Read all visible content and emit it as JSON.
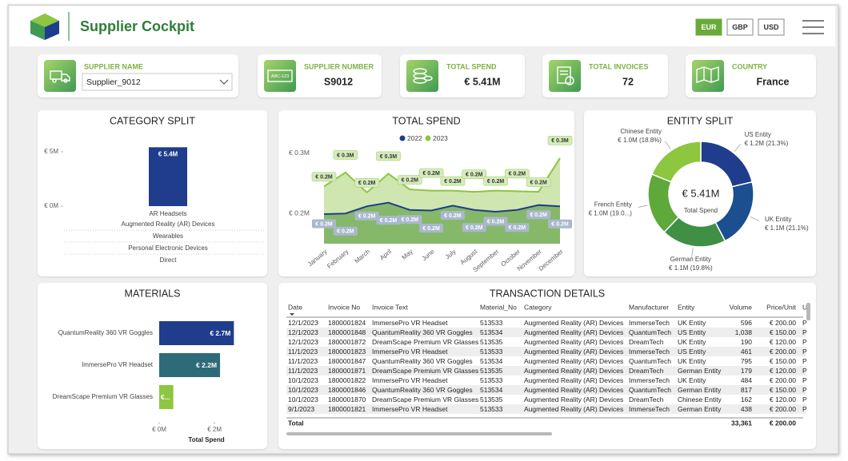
{
  "header": {
    "title": "Supplier Cockpit",
    "currencies": [
      "EUR",
      "GBP",
      "USD"
    ],
    "selected_currency": "EUR"
  },
  "kpis": [
    {
      "label": "SUPPLIER NAME",
      "value": "Supplier_9012"
    },
    {
      "label": "SUPPLIER NUMBER",
      "value": "S9012",
      "badge": "ABC-123"
    },
    {
      "label": "TOTAL SPEND",
      "value": "€ 5.41M"
    },
    {
      "label": "TOTAL INVOICES",
      "value": "72"
    },
    {
      "label": "COUNTRY",
      "value": "France"
    }
  ],
  "chart_data": [
    {
      "type": "bar",
      "title": "CATEGORY SPLIT",
      "categories": [
        "AR Headsets"
      ],
      "category_hierarchy": [
        "Augmented Reality (AR) Devices",
        "Wearables",
        "Personal Electronic Devices",
        "Direct"
      ],
      "values": [
        5410000
      ],
      "value_labels": [
        "€ 5.4M"
      ],
      "color": "#1f3d8c",
      "ylim": [
        0,
        5800000
      ],
      "yticks": [
        {
          "value": 0,
          "label": "€ 0M"
        },
        {
          "value": 5000000,
          "label": "€ 5M"
        }
      ]
    },
    {
      "type": "line",
      "title": "TOTAL SPEND",
      "categories": [
        "January",
        "February",
        "March",
        "April",
        "May",
        "June",
        "July",
        "August",
        "September",
        "October",
        "November",
        "December"
      ],
      "series": [
        {
          "name": "2022",
          "color": "#1f3d8c",
          "area_color": "#86b86a",
          "values": [
            199000,
            200000,
            212000,
            218000,
            206000,
            205000,
            213000,
            206000,
            203000,
            206000,
            214000,
            212000
          ],
          "value_labels": [
            "€ 0.2M",
            "€ 0.2M",
            "€ 0.2M",
            "€ 0.2M",
            "€ 0.2M",
            "€ 0.2M",
            "€ 0.2M",
            "€ 0.2M",
            "€ 0.2M",
            "€ 0.2M",
            "€ 0.2M",
            "€ 0.2M"
          ]
        },
        {
          "name": "2023",
          "color": "#8dc63f",
          "area_color": "#cfe6b1",
          "values": [
            245000,
            268000,
            235000,
            266000,
            240000,
            238000,
            238000,
            236000,
            238000,
            237000,
            236000,
            292000
          ],
          "value_labels": [
            "€ 0.2M",
            "€ 0.3M",
            "€ 0.2M",
            "€ 0.3M",
            "€ 0.2M",
            "€ 0.2M",
            "€ 0.2M",
            "€ 0.2M",
            "€ 0.2M",
            "€ 0.2M",
            "€ 0.2M",
            "€ 0.3M"
          ]
        }
      ],
      "ylim": [
        150000,
        305000
      ],
      "yticks": [
        {
          "value": 200000,
          "label": "€ 0.2M"
        },
        {
          "value": 300000,
          "label": "€ 0.3M"
        }
      ],
      "legend": "top"
    },
    {
      "type": "donut",
      "title": "ENTITY SPLIT",
      "categories": [
        "US Entity",
        "UK Entity",
        "German Entity",
        "French Entity",
        "Chinese Entity"
      ],
      "values": [
        1152000,
        1141000,
        1071000,
        1028000,
        1017000
      ],
      "value_labels": [
        "€ 1.2M (21.3%)",
        "€ 1.1M (21.1%)",
        "€ 1.1M (19.8%)",
        "€ 1.0M (19.0...)",
        "€ 1.0M (18.8%)"
      ],
      "colors": [
        "#1f3d8c",
        "#1b4f8f",
        "#3f8f45",
        "#5fa83a",
        "#8dc63f"
      ],
      "center_label": "€ 5.41M",
      "center_caption": "Total Spend"
    },
    {
      "type": "hbar",
      "title": "MATERIALS",
      "categories": [
        "QuantumReality 360 VR Goggles",
        "ImmersePro VR Headset",
        "DreamScape Premium VR Glasses"
      ],
      "values": [
        2700000,
        2200000,
        510000
      ],
      "value_labels": [
        "€ 2.7M",
        "€ 2.2M",
        "€..."
      ],
      "colors": [
        "#1f3d8c",
        "#2d6b78",
        "#8dc63f"
      ],
      "xlim": [
        0,
        3500000
      ],
      "xticks": [
        {
          "value": 0,
          "label": "€ 0M"
        },
        {
          "value": 2000000,
          "label": "€ 2M"
        }
      ],
      "xlabel": "Total Spend"
    }
  ],
  "table": {
    "title": "TRANSACTION DETAILS",
    "columns": [
      "Date",
      "Invoice No",
      "Invoice Text",
      "Material_No",
      "Category",
      "Manufacturer",
      "Entity",
      "Volume",
      "Price/Unit",
      "U"
    ],
    "rows": [
      [
        "12/1/2023",
        "1800001824",
        "ImmersePro VR Headset",
        "513533",
        "Augmented Reality (AR) Devices",
        "ImmerseTech",
        "UK Entity",
        "596",
        "€ 200.00",
        "P"
      ],
      [
        "12/1/2023",
        "1800001848",
        "QuantumReality 360 VR Goggles",
        "513534",
        "Augmented Reality (AR) Devices",
        "QuantumTech",
        "US Entity",
        "1,038",
        "€ 150.00",
        "P"
      ],
      [
        "12/1/2023",
        "1800001872",
        "DreamScape Premium VR Glasses",
        "513535",
        "Augmented Reality (AR) Devices",
        "DreamTech",
        "UK Entity",
        "190",
        "€ 120.00",
        "P"
      ],
      [
        "11/1/2023",
        "1800001823",
        "ImmersePro VR Headset",
        "513533",
        "Augmented Reality (AR) Devices",
        "ImmerseTech",
        "US Entity",
        "461",
        "€ 200.00",
        "P"
      ],
      [
        "11/1/2023",
        "1800001847",
        "QuantumReality 360 VR Goggles",
        "513534",
        "Augmented Reality (AR) Devices",
        "QuantumTech",
        "UK Entity",
        "795",
        "€ 150.00",
        "P"
      ],
      [
        "11/1/2023",
        "1800001871",
        "DreamScape Premium VR Glasses",
        "513535",
        "Augmented Reality (AR) Devices",
        "DreamTech",
        "German Entity",
        "179",
        "€ 120.00",
        "P"
      ],
      [
        "10/1/2023",
        "1800001822",
        "ImmersePro VR Headset",
        "513533",
        "Augmented Reality (AR) Devices",
        "ImmerseTech",
        "UK Entity",
        "484",
        "€ 200.00",
        "P"
      ],
      [
        "10/1/2023",
        "1800001846",
        "QuantumReality 360 VR Goggles",
        "513534",
        "Augmented Reality (AR) Devices",
        "QuantumTech",
        "German Entity",
        "817",
        "€ 150.00",
        "P"
      ],
      [
        "10/1/2023",
        "1800001870",
        "DreamScape Premium VR Glasses",
        "513535",
        "Augmented Reality (AR) Devices",
        "DreamTech",
        "Chinese Entity",
        "162",
        "€ 120.00",
        "P"
      ],
      [
        "9/1/2023",
        "1800001821",
        "ImmersePro VR Headset",
        "513533",
        "Augmented Reality (AR) Devices",
        "ImmerseTech",
        "German Entity",
        "438",
        "€ 200.00",
        "P"
      ]
    ],
    "total": {
      "label": "Total",
      "volume": "33,361",
      "price": "€ 200.00"
    }
  }
}
